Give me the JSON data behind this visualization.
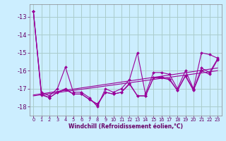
{
  "background_color": "#cceeff",
  "grid_color": "#aacccc",
  "line_color": "#990099",
  "xlim": [
    -0.5,
    23.5
  ],
  "ylim": [
    -18.5,
    -12.3
  ],
  "yticks": [
    -18,
    -17,
    -16,
    -15,
    -14,
    -13
  ],
  "xticks": [
    0,
    1,
    2,
    3,
    4,
    5,
    6,
    7,
    8,
    9,
    10,
    11,
    12,
    13,
    14,
    15,
    16,
    17,
    18,
    19,
    20,
    21,
    22,
    23
  ],
  "xlabel": "Windchill (Refroidissement éolien,°C)",
  "main_x": [
    0,
    1,
    2,
    3,
    4,
    5,
    6,
    7,
    8,
    9,
    10,
    11,
    12,
    13,
    14,
    15,
    16,
    17,
    18,
    19,
    20,
    21,
    22,
    23
  ],
  "main_y": [
    -12.7,
    -17.2,
    -17.4,
    -17.0,
    -15.8,
    -17.2,
    -17.2,
    -17.5,
    -18.0,
    -17.0,
    -17.2,
    -17.0,
    -16.5,
    -15.0,
    -17.3,
    -16.1,
    -16.1,
    -16.2,
    -17.0,
    -16.0,
    -17.0,
    -15.0,
    -15.1,
    -15.3
  ],
  "line2_x": [
    0,
    1,
    2,
    3,
    4,
    5,
    6,
    7,
    8,
    9,
    10,
    11,
    12,
    13,
    14,
    15,
    16,
    17,
    18,
    19,
    20,
    21,
    22,
    23
  ],
  "line2_y": [
    -12.7,
    -17.3,
    -17.5,
    -17.2,
    -17.0,
    -17.3,
    -17.3,
    -17.6,
    -17.9,
    -17.2,
    -17.3,
    -17.2,
    -16.7,
    -17.4,
    -17.4,
    -16.4,
    -16.4,
    -16.5,
    -17.1,
    -16.3,
    -17.1,
    -16.0,
    -16.2,
    -15.4
  ],
  "line3_x": [
    0,
    1,
    2,
    3,
    4,
    5,
    6,
    7,
    8,
    9,
    10,
    11,
    12,
    13,
    14,
    15,
    16,
    17,
    18,
    19,
    20,
    21,
    22,
    23
  ],
  "line3_y": [
    -12.7,
    -17.35,
    -17.5,
    -17.2,
    -17.05,
    -17.3,
    -17.3,
    -17.6,
    -17.85,
    -17.2,
    -17.3,
    -17.2,
    -16.75,
    -17.4,
    -17.4,
    -16.4,
    -16.35,
    -16.45,
    -17.1,
    -16.25,
    -17.05,
    -15.85,
    -16.1,
    -15.35
  ],
  "trend_x": [
    0,
    23
  ],
  "trend_y": [
    -17.35,
    -15.85
  ]
}
